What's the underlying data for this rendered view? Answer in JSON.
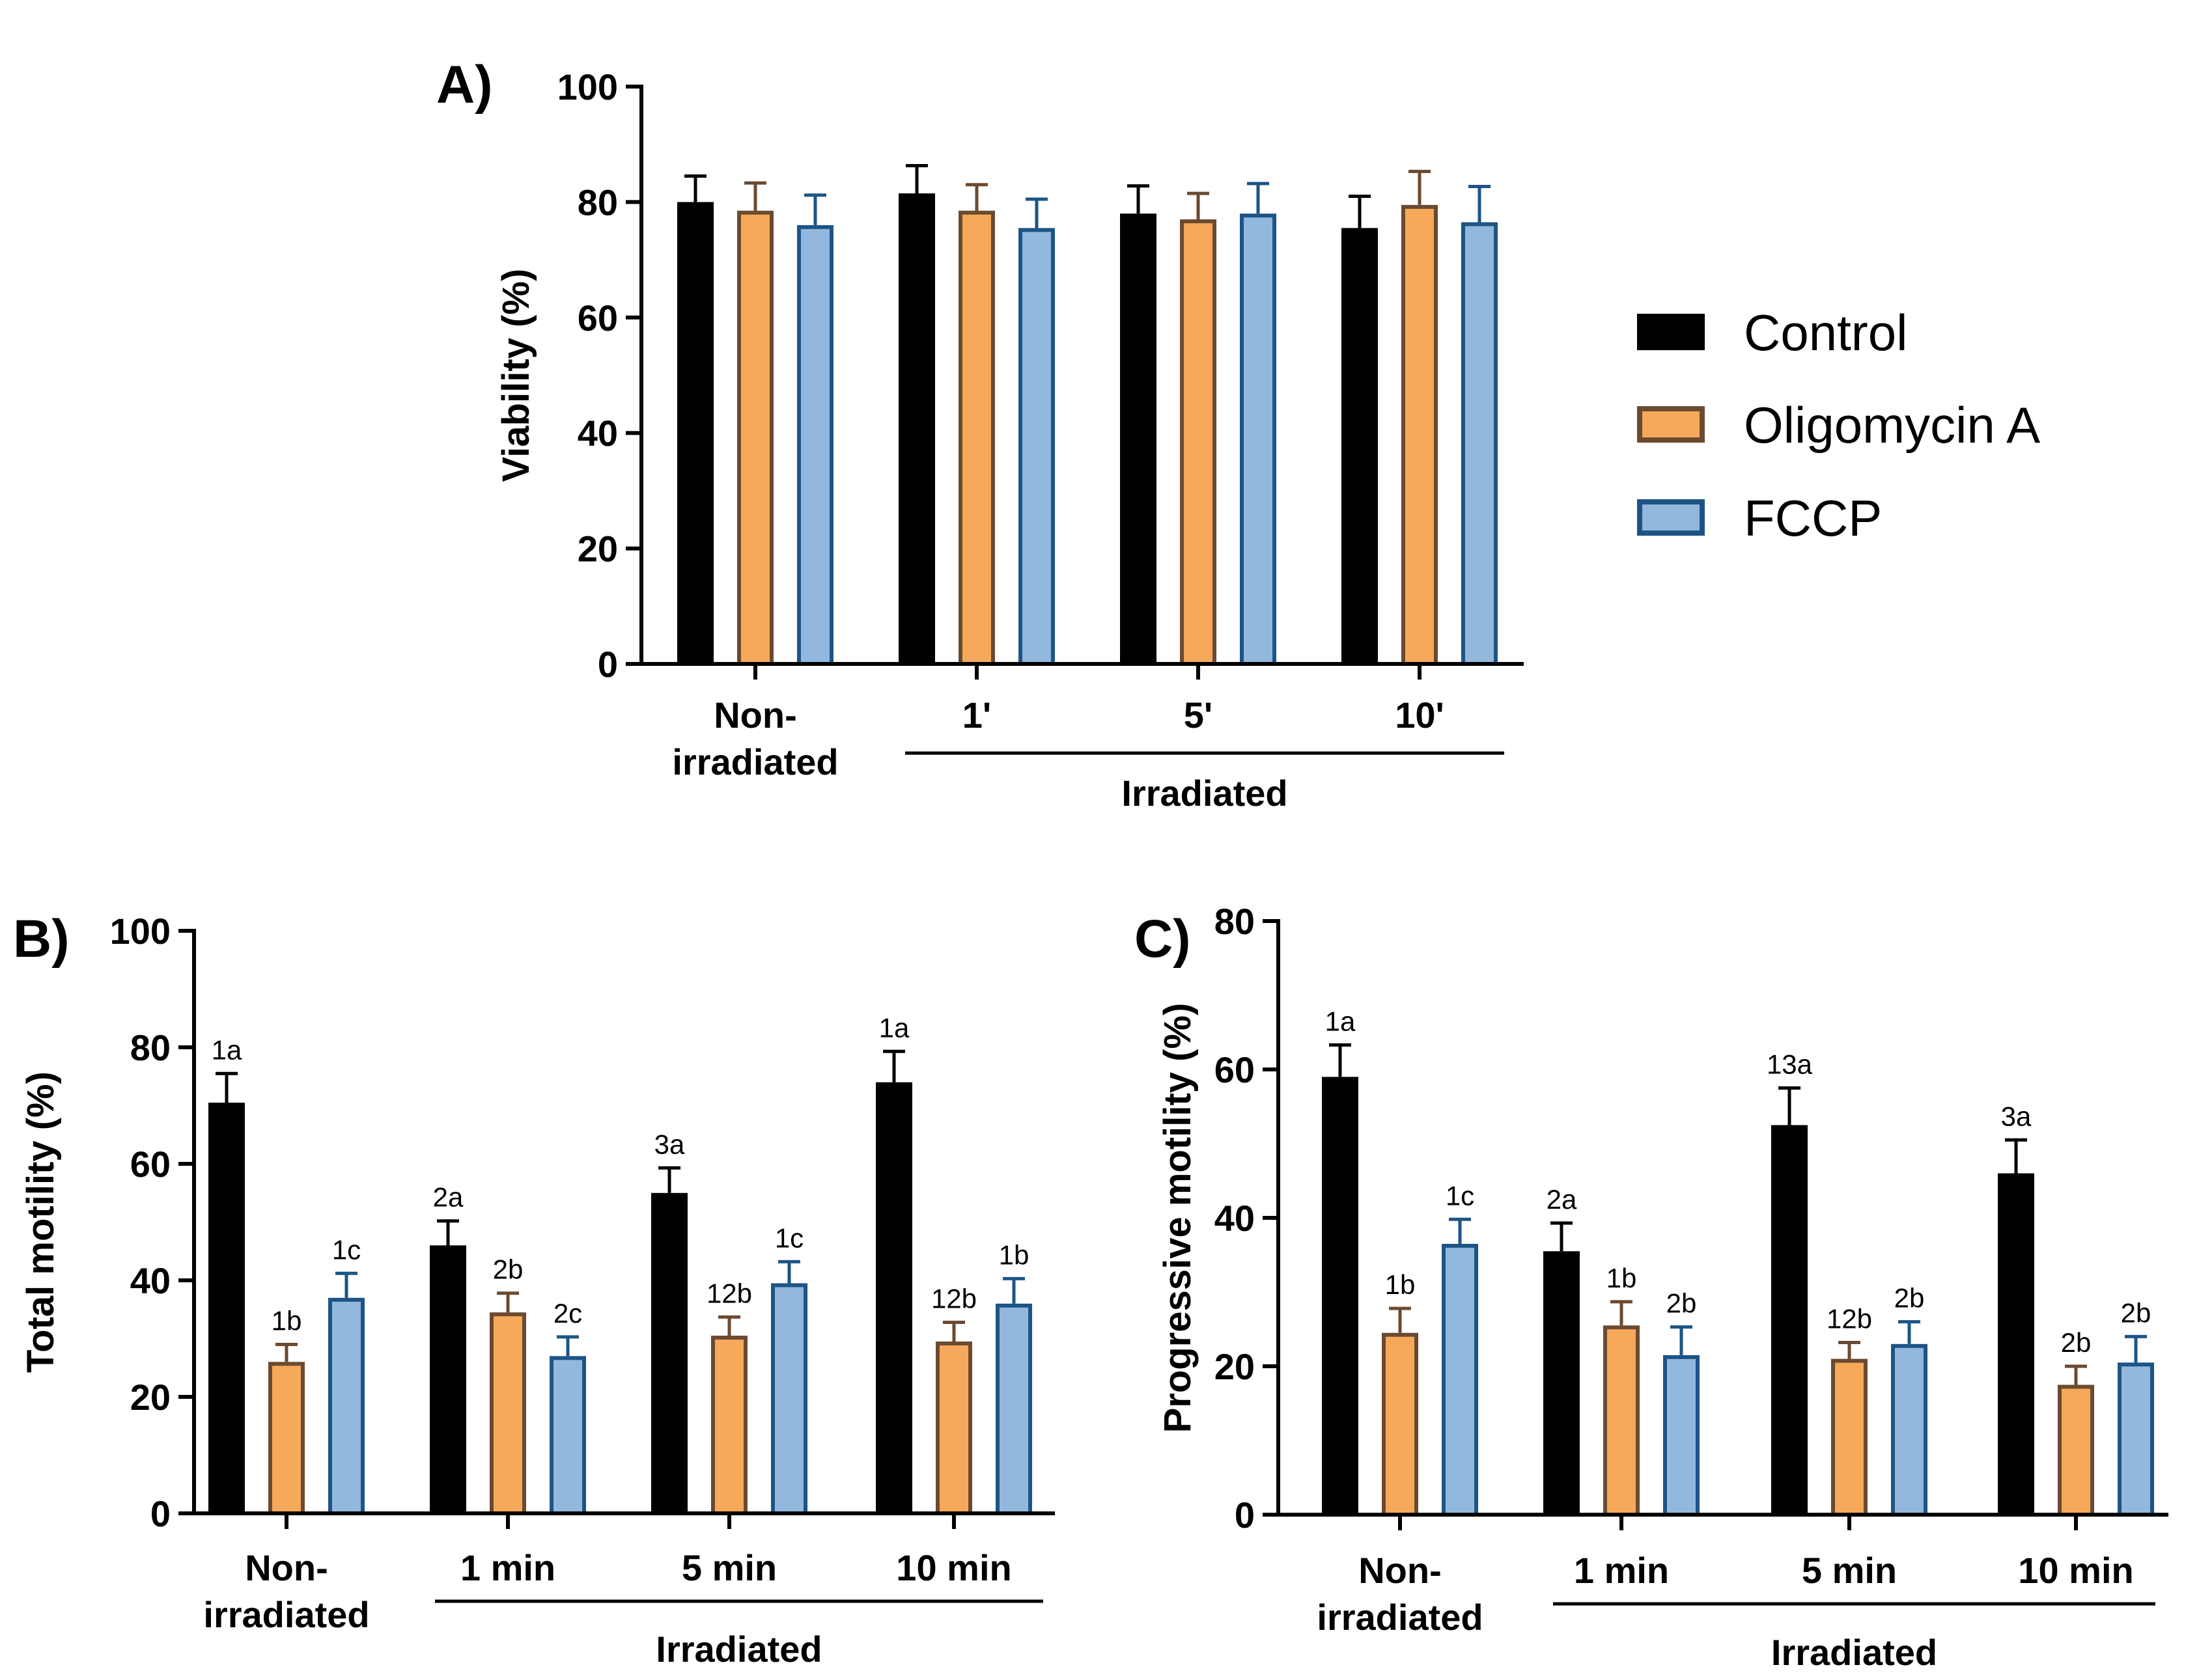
{
  "colors": {
    "Control": {
      "fill": "#000000",
      "stroke": "#000000"
    },
    "Oligomycin A": {
      "fill": "#f7a95b",
      "stroke": "#6b4a30"
    },
    "FCCP": {
      "fill": "#93b8dd",
      "stroke": "#1d5486"
    }
  },
  "legend": [
    "Control",
    "Oligomycin A",
    "FCCP"
  ],
  "chart_data": [
    {
      "panel": "A)",
      "type": "bar",
      "ylabel": "Viability (%)",
      "ylim": [
        0,
        100
      ],
      "yticks": [
        0,
        20,
        40,
        60,
        80,
        100
      ],
      "categories": [
        [
          "Non-",
          "irradiated"
        ],
        [
          "1'"
        ],
        [
          "5'"
        ],
        [
          "10'"
        ]
      ],
      "group_label": "Irradiated",
      "series": [
        {
          "name": "Control",
          "values": [
            80,
            81.5,
            78,
            75.5
          ],
          "errors": [
            4.5,
            4.8,
            4.8,
            5.5
          ]
        },
        {
          "name": "Oligomycin A",
          "values": [
            78.5,
            78.5,
            77,
            79.5
          ],
          "errors": [
            4.8,
            4.5,
            4.5,
            5.8
          ]
        },
        {
          "name": "FCCP",
          "values": [
            76,
            75.5,
            78,
            76.5
          ],
          "errors": [
            5.2,
            5,
            5.2,
            6.2
          ]
        }
      ],
      "annotations": null
    },
    {
      "panel": "B)",
      "type": "bar",
      "ylabel": "Total motility (%)",
      "ylim": [
        0,
        100
      ],
      "yticks": [
        0,
        20,
        40,
        60,
        80,
        100
      ],
      "categories": [
        [
          "Non-",
          "irradiated"
        ],
        [
          "1 min"
        ],
        [
          "5 min"
        ],
        [
          "10 min"
        ]
      ],
      "group_label": "Irradiated",
      "series": [
        {
          "name": "Control",
          "values": [
            70.5,
            46,
            55,
            74
          ],
          "errors": [
            5,
            4.2,
            4.3,
            5.3
          ]
        },
        {
          "name": "Oligomycin A",
          "values": [
            26,
            34.5,
            30.5,
            29.5
          ],
          "errors": [
            3,
            3.3,
            3.2,
            3.3
          ]
        },
        {
          "name": "FCCP",
          "values": [
            37,
            27,
            39.5,
            36
          ],
          "errors": [
            4.2,
            3.3,
            3.7,
            4.3
          ]
        }
      ],
      "annotations": [
        [
          "1a",
          "2a",
          "3a",
          "1a"
        ],
        [
          "1b",
          "2b",
          "12b",
          "12b"
        ],
        [
          "1c",
          "2c",
          "1c",
          "1b"
        ]
      ]
    },
    {
      "panel": "C)",
      "type": "bar",
      "ylabel": "Progressive motility (%)",
      "ylim": [
        0,
        80
      ],
      "yticks": [
        0,
        20,
        40,
        60,
        80
      ],
      "categories": [
        [
          "Non-",
          "irradiated"
        ],
        [
          "1 min"
        ],
        [
          "5 min"
        ],
        [
          "10 min"
        ]
      ],
      "group_label": "Irradiated",
      "series": [
        {
          "name": "Control",
          "values": [
            59,
            35.5,
            52.5,
            46
          ],
          "errors": [
            4.3,
            3.8,
            5,
            4.5
          ]
        },
        {
          "name": "Oligomycin A",
          "values": [
            24.5,
            25.5,
            21,
            17.5
          ],
          "errors": [
            3.3,
            3.2,
            2.2,
            2.5
          ]
        },
        {
          "name": "FCCP",
          "values": [
            36.5,
            21.5,
            23,
            20.5
          ],
          "errors": [
            3.3,
            3.8,
            3,
            3.5
          ]
        }
      ],
      "annotations": [
        [
          "1a",
          "2a",
          "13a",
          "3a"
        ],
        [
          "1b",
          "1b",
          "12b",
          "2b"
        ],
        [
          "1c",
          "2b",
          "2b",
          "2b"
        ]
      ]
    }
  ]
}
